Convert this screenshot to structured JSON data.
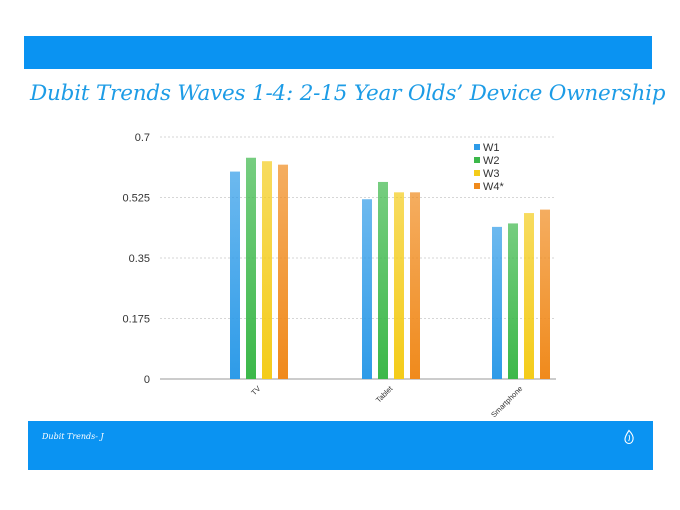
{
  "slide": {
    "title": "Dubit Trends Waves 1-4: 2-15 Year Olds’ Device Ownership",
    "footer_text": "Dubit  Trends- J",
    "band_color": "#0a93f2",
    "title_color": "#1d9ce6",
    "logo_icon": "leaf-drop-icon"
  },
  "chart_data": {
    "type": "bar",
    "categories": [
      "TV",
      "Tablet",
      "Smartphone"
    ],
    "series": [
      {
        "name": "W1",
        "values": [
          0.6,
          0.52,
          0.44
        ],
        "color": "#2e9be8"
      },
      {
        "name": "W2",
        "values": [
          0.64,
          0.57,
          0.45
        ],
        "color": "#3cb84a"
      },
      {
        "name": "W3",
        "values": [
          0.63,
          0.54,
          0.48
        ],
        "color": "#f4cc1a"
      },
      {
        "name": "W4*",
        "values": [
          0.62,
          0.54,
          0.49
        ],
        "color": "#f08a1c"
      }
    ],
    "ylim": [
      0,
      0.7
    ],
    "yticks": [
      "0",
      "0.175",
      "0.35",
      "0.525",
      "0.7"
    ],
    "title": "",
    "xlabel": "",
    "ylabel": "",
    "grid": true,
    "legend_position": "top-right"
  }
}
